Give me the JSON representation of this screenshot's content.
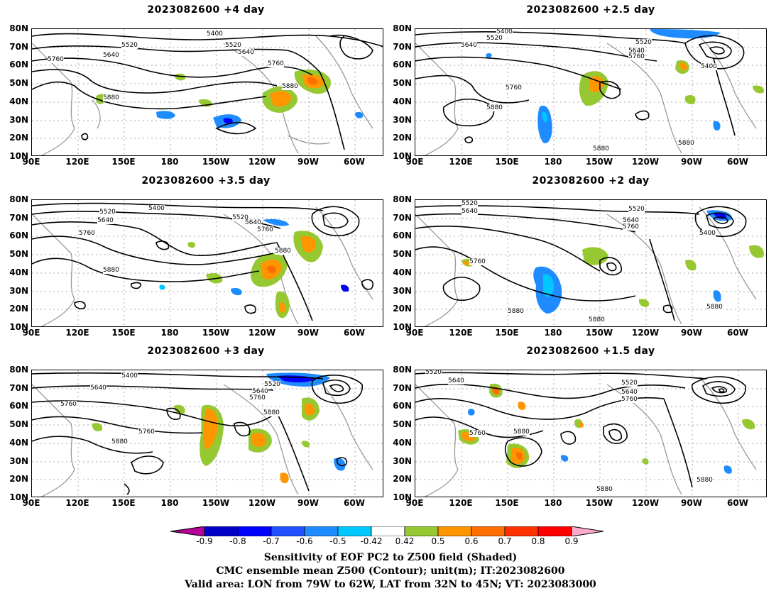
{
  "panels": [
    {
      "title": "2023082600  +4 day"
    },
    {
      "title": "2023082600  +2.5 day"
    },
    {
      "title": "2023082600  +3.5 day"
    },
    {
      "title": "2023082600  +2 day"
    },
    {
      "title": "2023082600  +3 day"
    },
    {
      "title": "2023082600  +1.5 day"
    }
  ],
  "lat_labels": [
    "80N",
    "70N",
    "60N",
    "50N",
    "40N",
    "30N",
    "20N",
    "10N"
  ],
  "lon_labels": [
    "90E",
    "120E",
    "150E",
    "180",
    "150W",
    "120W",
    "90W",
    "60W"
  ],
  "contour_labels": {
    "p0": [
      "5400",
      "5520",
      "5520",
      "5640",
      "5640",
      "5760",
      "5760",
      "5880",
      "5880"
    ],
    "p1": [
      "5400",
      "5520",
      "5640",
      "5520",
      "5640",
      "5760",
      "5400",
      "5760",
      "5880",
      "5880",
      "5880"
    ],
    "p2": [
      "5400",
      "5520",
      "5640",
      "5760",
      "5520",
      "5640",
      "5760",
      "5880",
      "5880"
    ],
    "p3": [
      "5520",
      "5640",
      "5520",
      "5640",
      "5760",
      "5400",
      "5760",
      "5880",
      "5880",
      "5880"
    ],
    "p4": [
      "5400",
      "5640",
      "5760",
      "5520",
      "5640",
      "5760",
      "5880",
      "5760",
      "5880"
    ],
    "p5": [
      "5520",
      "5640",
      "5520",
      "5640",
      "5760",
      "5760",
      "5880",
      "5880",
      "5880"
    ]
  },
  "colorbar": {
    "labels": [
      "-0.9",
      "-0.8",
      "-0.7",
      "-0.6",
      "-0.5",
      "-0.42",
      "0.42",
      "0.5",
      "0.6",
      "0.7",
      "0.8",
      "0.9"
    ],
    "colors": [
      "#b40096",
      "#0000c8",
      "#0000ff",
      "#1e50ff",
      "#1e8cff",
      "#00c8ff",
      "#ffffff",
      "#96c832",
      "#ff9600",
      "#ff6e00",
      "#ff3200",
      "#ff0000",
      "#ffaacc"
    ]
  },
  "caption": {
    "line1": "Sensitivity of EOF PC2 to Z500 field (Shaded)",
    "line2": "CMC ensemble mean Z500 (Contour); unit(m); IT:2023082600",
    "line3": "Valid area: LON from 79W to 62W, LAT from 32N to 45N; VT: 2023083000"
  }
}
